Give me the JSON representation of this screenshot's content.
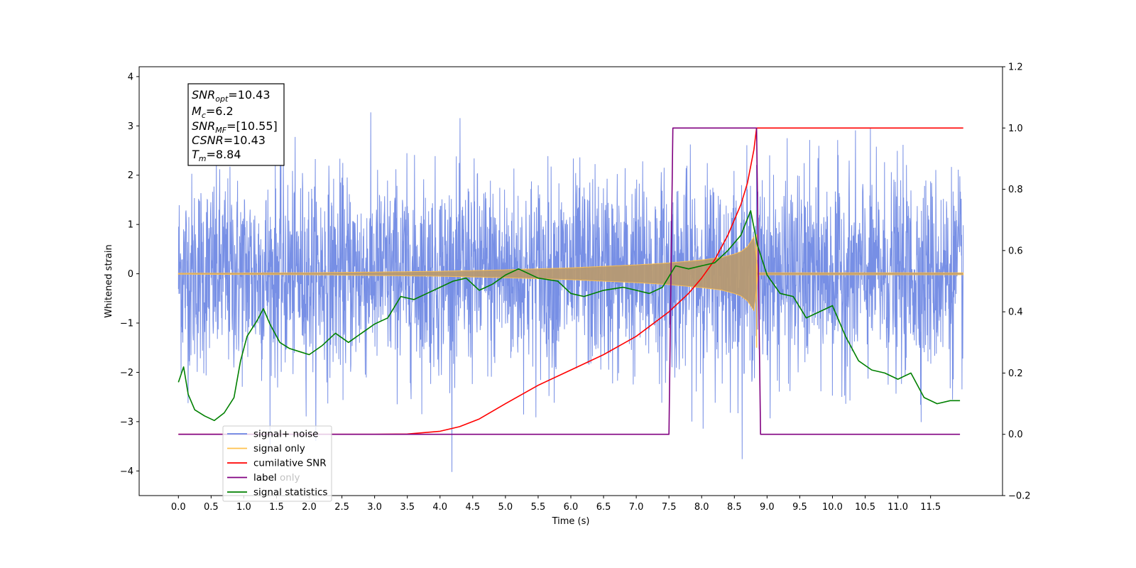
{
  "chart_data": {
    "type": "line",
    "xlabel": "Time (s)",
    "ylabel": "Whitened strain",
    "xlim": [
      -0.6,
      12.6
    ],
    "ylim": [
      -4.5,
      4.2
    ],
    "y2lim": [
      -0.2,
      1.2
    ],
    "x_ticks": [
      "0.0",
      "0.5",
      "1.0",
      "1.5",
      "2.0",
      "2.5",
      "3.0",
      "3.5",
      "4.0",
      "4.5",
      "5.0",
      "5.5",
      "6.0",
      "6.5",
      "7.0",
      "7.5",
      "8.0",
      "8.5",
      "9.0",
      "9.5",
      "10.0",
      "10.5",
      "11.0",
      "11.5"
    ],
    "y_ticks": [
      "4",
      "3",
      "2",
      "1",
      "0",
      "−1",
      "−2",
      "−3",
      "−4"
    ],
    "y2_ticks": [
      "1.2",
      "1.0",
      "0.8",
      "0.6",
      "0.4",
      "0.2",
      "0.0",
      "−0.2"
    ],
    "info_box": {
      "snr_opt": {
        "base": "SNR",
        "sub": "opt",
        "value": "=10.43"
      },
      "mc": {
        "base": "M",
        "sub": "c",
        "value": "=6.2"
      },
      "snr_mf": {
        "base": "SNR",
        "sub": "MF",
        "value": "=[10.55]"
      },
      "csnr": {
        "base": "CSNR",
        "value": "=10.43"
      },
      "tm": {
        "base": "T",
        "sub": "m",
        "value": "=8.84"
      }
    },
    "legend": {
      "position": "lower-left",
      "entries": [
        {
          "label": "signal+ noise",
          "color": "#6b86e3"
        },
        {
          "label": "signal only",
          "color": "#ffc04d"
        },
        {
          "label": "cumilative SNR",
          "color": "#ff0000"
        },
        {
          "label": "label",
          "color": "#800080"
        },
        {
          "label": "signal statistics",
          "color": "#008000"
        }
      ]
    },
    "hidden_legend_label": "label only",
    "series": [
      {
        "name": "signal+ noise",
        "axis": "left",
        "color": "#6b86e3",
        "noise": {
          "x_start": 0.0,
          "x_end": 12.0,
          "sigma": 1.0,
          "n_points": 3000,
          "max_abs": 3.8
        }
      },
      {
        "name": "signal only",
        "axis": "left",
        "color": "#ffc04d",
        "envelope": {
          "x": [
            0.0,
            2.0,
            4.0,
            5.0,
            6.0,
            6.5,
            7.0,
            7.5,
            8.0,
            8.3,
            8.5,
            8.6,
            8.7,
            8.75,
            8.8,
            8.84,
            8.86,
            12.0
          ],
          "amp": [
            0.01,
            0.02,
            0.05,
            0.08,
            0.12,
            0.15,
            0.18,
            0.22,
            0.28,
            0.33,
            0.4,
            0.45,
            0.55,
            0.65,
            0.75,
            0.3,
            0.02,
            0.02
          ]
        }
      },
      {
        "name": "cumilative SNR",
        "axis": "right",
        "color": "#ff0000",
        "x": [
          0.0,
          3.0,
          3.5,
          4.0,
          4.3,
          4.6,
          5.0,
          5.5,
          6.0,
          6.5,
          7.0,
          7.5,
          7.8,
          8.0,
          8.2,
          8.4,
          8.6,
          8.7,
          8.8,
          8.84,
          12.0
        ],
        "values": [
          0.0,
          0.0,
          0.001,
          0.01,
          0.025,
          0.05,
          0.1,
          0.16,
          0.21,
          0.26,
          0.32,
          0.4,
          0.46,
          0.51,
          0.57,
          0.65,
          0.75,
          0.82,
          0.93,
          1.0,
          1.0
        ]
      },
      {
        "name": "label",
        "axis": "right",
        "color": "#800080",
        "x": [
          0.0,
          7.5,
          7.56,
          8.84,
          8.9,
          11.95
        ],
        "values": [
          0.0,
          0.0,
          1.0,
          1.0,
          0.0,
          0.0
        ]
      },
      {
        "name": "signal statistics",
        "axis": "right",
        "color": "#008000",
        "x": [
          0.0,
          0.08,
          0.15,
          0.25,
          0.4,
          0.55,
          0.7,
          0.85,
          0.95,
          1.05,
          1.2,
          1.3,
          1.4,
          1.55,
          1.7,
          1.85,
          2.0,
          2.2,
          2.4,
          2.6,
          2.8,
          3.0,
          3.2,
          3.4,
          3.6,
          3.8,
          4.0,
          4.2,
          4.4,
          4.6,
          4.8,
          5.0,
          5.2,
          5.5,
          5.8,
          6.0,
          6.2,
          6.5,
          6.8,
          7.0,
          7.2,
          7.4,
          7.6,
          7.8,
          8.0,
          8.2,
          8.4,
          8.6,
          8.75,
          8.85,
          9.0,
          9.2,
          9.4,
          9.6,
          9.8,
          10.0,
          10.2,
          10.4,
          10.6,
          10.8,
          11.0,
          11.2,
          11.4,
          11.6,
          11.8,
          11.95
        ],
        "values": [
          0.17,
          0.22,
          0.13,
          0.08,
          0.06,
          0.045,
          0.07,
          0.12,
          0.24,
          0.32,
          0.37,
          0.41,
          0.36,
          0.3,
          0.28,
          0.27,
          0.26,
          0.29,
          0.33,
          0.3,
          0.33,
          0.36,
          0.38,
          0.45,
          0.44,
          0.46,
          0.48,
          0.5,
          0.51,
          0.47,
          0.49,
          0.52,
          0.54,
          0.51,
          0.5,
          0.46,
          0.45,
          0.47,
          0.48,
          0.47,
          0.46,
          0.48,
          0.55,
          0.54,
          0.55,
          0.56,
          0.6,
          0.65,
          0.73,
          0.62,
          0.52,
          0.46,
          0.45,
          0.38,
          0.4,
          0.42,
          0.32,
          0.24,
          0.21,
          0.2,
          0.18,
          0.2,
          0.12,
          0.1,
          0.11,
          0.11
        ]
      }
    ]
  }
}
